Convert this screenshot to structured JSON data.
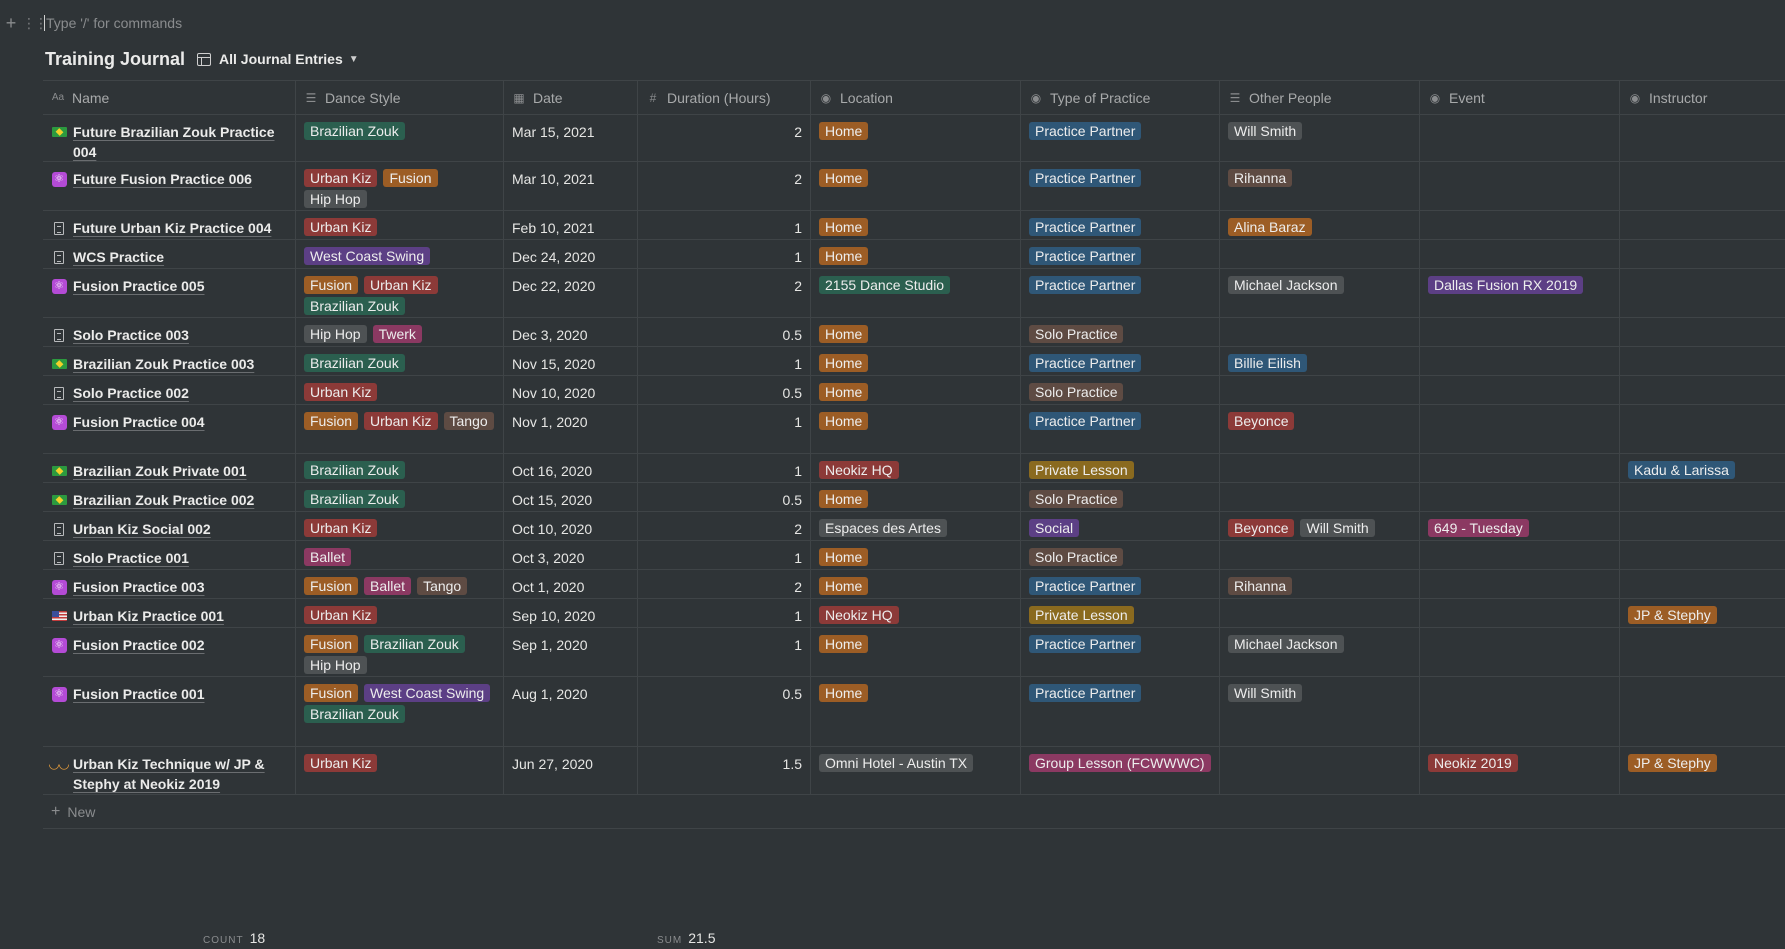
{
  "command_placeholder": "Type '/' for commands",
  "title": "Training Journal",
  "view_name": "All Journal Entries",
  "colors": {
    "background": "#2f3437",
    "text": "#e6e6e4"
  },
  "columns": [
    {
      "label": "Name",
      "icon": "text-type-icon"
    },
    {
      "label": "Dance Style",
      "icon": "list-icon"
    },
    {
      "label": "Date",
      "icon": "calendar-icon"
    },
    {
      "label": "Duration (Hours)",
      "icon": "number-icon"
    },
    {
      "label": "Location",
      "icon": "select-icon"
    },
    {
      "label": "Type of Practice",
      "icon": "select-icon"
    },
    {
      "label": "Other People",
      "icon": "list-icon"
    },
    {
      "label": "Event",
      "icon": "select-icon"
    },
    {
      "label": "Instructor",
      "icon": "select-icon"
    }
  ],
  "rows": [
    {
      "icon": "flag-brazil",
      "name": "Future Brazilian Zouk Practice 004",
      "styles": [
        {
          "label": "Brazilian Zouk",
          "color": "green"
        }
      ],
      "date": "Mar 15, 2021",
      "duration": "2",
      "location": {
        "label": "Home",
        "color": "orange"
      },
      "practice": {
        "label": "Practice Partner",
        "color": "blue"
      },
      "others": [
        {
          "label": "Will Smith",
          "color": "gray"
        }
      ],
      "event": null,
      "instructor": null
    },
    {
      "icon": "atom",
      "name": "Future Fusion Practice 006",
      "styles": [
        {
          "label": "Urban Kiz",
          "color": "red"
        },
        {
          "label": "Fusion",
          "color": "orange"
        },
        {
          "label": "Hip Hop",
          "color": "gray"
        }
      ],
      "date": "Mar 10, 2021",
      "duration": "2",
      "location": {
        "label": "Home",
        "color": "orange"
      },
      "practice": {
        "label": "Practice Partner",
        "color": "blue"
      },
      "others": [
        {
          "label": "Rihanna",
          "color": "brown"
        }
      ],
      "event": null,
      "instructor": null
    },
    {
      "icon": "doc",
      "name": "Future Urban Kiz Practice 004",
      "styles": [
        {
          "label": "Urban Kiz",
          "color": "red"
        }
      ],
      "date": "Feb 10, 2021",
      "duration": "1",
      "location": {
        "label": "Home",
        "color": "orange"
      },
      "practice": {
        "label": "Practice Partner",
        "color": "blue"
      },
      "others": [
        {
          "label": "Alina Baraz",
          "color": "orange"
        }
      ],
      "event": null,
      "instructor": null
    },
    {
      "icon": "doc",
      "name": "WCS Practice",
      "styles": [
        {
          "label": "West Coast Swing",
          "color": "purple"
        }
      ],
      "date": "Dec 24, 2020",
      "duration": "1",
      "location": {
        "label": "Home",
        "color": "orange"
      },
      "practice": {
        "label": "Practice Partner",
        "color": "blue"
      },
      "others": [],
      "event": null,
      "instructor": null
    },
    {
      "icon": "atom",
      "name": "Fusion Practice 005",
      "styles": [
        {
          "label": "Fusion",
          "color": "orange"
        },
        {
          "label": "Urban Kiz",
          "color": "red"
        },
        {
          "label": "Brazilian Zouk",
          "color": "green"
        }
      ],
      "date": "Dec 22, 2020",
      "duration": "2",
      "location": {
        "label": "2155 Dance Studio",
        "color": "green"
      },
      "practice": {
        "label": "Practice Partner",
        "color": "blue"
      },
      "others": [
        {
          "label": "Michael Jackson",
          "color": "gray"
        }
      ],
      "event": {
        "label": "Dallas Fusion RX 2019",
        "color": "purple"
      },
      "instructor": null
    },
    {
      "icon": "doc",
      "name": "Solo Practice 003",
      "styles": [
        {
          "label": "Hip Hop",
          "color": "gray"
        },
        {
          "label": "Twerk",
          "color": "pink"
        }
      ],
      "date": "Dec 3, 2020",
      "duration": "0.5",
      "location": {
        "label": "Home",
        "color": "orange"
      },
      "practice": {
        "label": "Solo Practice",
        "color": "brown"
      },
      "others": [],
      "event": null,
      "instructor": null
    },
    {
      "icon": "flag-brazil",
      "name": "Brazilian Zouk Practice 003",
      "styles": [
        {
          "label": "Brazilian Zouk",
          "color": "green"
        }
      ],
      "date": "Nov 15, 2020",
      "duration": "1",
      "location": {
        "label": "Home",
        "color": "orange"
      },
      "practice": {
        "label": "Practice Partner",
        "color": "blue"
      },
      "others": [
        {
          "label": "Billie Eilish",
          "color": "blue"
        }
      ],
      "event": null,
      "instructor": null
    },
    {
      "icon": "doc",
      "name": "Solo Practice 002",
      "styles": [
        {
          "label": "Urban Kiz",
          "color": "red"
        }
      ],
      "date": "Nov 10, 2020",
      "duration": "0.5",
      "location": {
        "label": "Home",
        "color": "orange"
      },
      "practice": {
        "label": "Solo Practice",
        "color": "brown"
      },
      "others": [],
      "event": null,
      "instructor": null
    },
    {
      "icon": "atom",
      "name": "Fusion Practice 004",
      "styles": [
        {
          "label": "Fusion",
          "color": "orange"
        },
        {
          "label": "Urban Kiz",
          "color": "red"
        },
        {
          "label": "Tango",
          "color": "brown"
        }
      ],
      "date": "Nov 1, 2020",
      "duration": "1",
      "location": {
        "label": "Home",
        "color": "orange"
      },
      "practice": {
        "label": "Practice Partner",
        "color": "blue"
      },
      "others": [
        {
          "label": "Beyonce",
          "color": "red"
        }
      ],
      "event": null,
      "instructor": null
    },
    {
      "icon": "flag-brazil",
      "name": "Brazilian Zouk Private 001",
      "styles": [
        {
          "label": "Brazilian Zouk",
          "color": "green"
        }
      ],
      "date": "Oct 16, 2020",
      "duration": "1",
      "location": {
        "label": "Neokiz HQ",
        "color": "red"
      },
      "practice": {
        "label": "Private Lesson",
        "color": "yellow"
      },
      "others": [],
      "event": null,
      "instructor": {
        "label": "Kadu & Larissa",
        "color": "blue"
      }
    },
    {
      "icon": "flag-brazil",
      "name": "Brazilian Zouk Practice 002",
      "styles": [
        {
          "label": "Brazilian Zouk",
          "color": "green"
        }
      ],
      "date": "Oct 15, 2020",
      "duration": "0.5",
      "location": {
        "label": "Home",
        "color": "orange"
      },
      "practice": {
        "label": "Solo Practice",
        "color": "brown"
      },
      "others": [],
      "event": null,
      "instructor": null
    },
    {
      "icon": "doc",
      "name": "Urban Kiz Social 002",
      "styles": [
        {
          "label": "Urban Kiz",
          "color": "red"
        }
      ],
      "date": "Oct 10, 2020",
      "duration": "2",
      "location": {
        "label": "Espaces des Artes",
        "color": "gray"
      },
      "practice": {
        "label": "Social",
        "color": "purple"
      },
      "others": [
        {
          "label": "Beyonce",
          "color": "red"
        },
        {
          "label": "Will Smith",
          "color": "gray"
        }
      ],
      "event": {
        "label": "649 - Tuesday",
        "color": "pink"
      },
      "instructor": null
    },
    {
      "icon": "doc",
      "name": "Solo Practice 001",
      "styles": [
        {
          "label": "Ballet",
          "color": "pink"
        }
      ],
      "date": "Oct 3, 2020",
      "duration": "1",
      "location": {
        "label": "Home",
        "color": "orange"
      },
      "practice": {
        "label": "Solo Practice",
        "color": "brown"
      },
      "others": [],
      "event": null,
      "instructor": null
    },
    {
      "icon": "atom",
      "name": "Fusion Practice 003",
      "styles": [
        {
          "label": "Fusion",
          "color": "orange"
        },
        {
          "label": "Ballet",
          "color": "pink"
        },
        {
          "label": "Tango",
          "color": "brown"
        }
      ],
      "date": "Oct 1, 2020",
      "duration": "2",
      "location": {
        "label": "Home",
        "color": "orange"
      },
      "practice": {
        "label": "Practice Partner",
        "color": "blue"
      },
      "others": [
        {
          "label": "Rihanna",
          "color": "brown"
        }
      ],
      "event": null,
      "instructor": null
    },
    {
      "icon": "flag-us",
      "name": "Urban Kiz Practice 001",
      "styles": [
        {
          "label": "Urban Kiz",
          "color": "red"
        }
      ],
      "date": "Sep 10, 2020",
      "duration": "1",
      "location": {
        "label": "Neokiz HQ",
        "color": "red"
      },
      "practice": {
        "label": "Private Lesson",
        "color": "yellow"
      },
      "others": [],
      "event": null,
      "instructor": {
        "label": "JP & Stephy",
        "color": "orange"
      }
    },
    {
      "icon": "atom",
      "name": "Fusion Practice 002",
      "styles": [
        {
          "label": "Fusion",
          "color": "orange"
        },
        {
          "label": "Brazilian Zouk",
          "color": "green"
        },
        {
          "label": "Hip Hop",
          "color": "gray"
        }
      ],
      "date": "Sep 1, 2020",
      "duration": "1",
      "location": {
        "label": "Home",
        "color": "orange"
      },
      "practice": {
        "label": "Practice Partner",
        "color": "blue"
      },
      "others": [
        {
          "label": "Michael Jackson",
          "color": "gray"
        }
      ],
      "event": null,
      "instructor": null
    },
    {
      "icon": "atom",
      "name": "Fusion Practice 001",
      "styles": [
        {
          "label": "Fusion",
          "color": "orange"
        },
        {
          "label": "West Coast Swing",
          "color": "purple"
        },
        {
          "label": "Brazilian Zouk",
          "color": "green"
        }
      ],
      "date": "Aug 1, 2020",
      "duration": "0.5",
      "location": {
        "label": "Home",
        "color": "orange"
      },
      "practice": {
        "label": "Practice Partner",
        "color": "blue"
      },
      "others": [
        {
          "label": "Will Smith",
          "color": "gray"
        }
      ],
      "event": null,
      "instructor": null
    },
    {
      "icon": "mask",
      "name": "Urban Kiz Technique w/ JP & Stephy at Neokiz 2019",
      "styles": [
        {
          "label": "Urban Kiz",
          "color": "red"
        }
      ],
      "date": "Jun 27, 2020",
      "duration": "1.5",
      "location": {
        "label": "Omni Hotel - Austin TX",
        "color": "gray"
      },
      "practice": {
        "label": "Group Lesson (FCWWWC)",
        "color": "pink"
      },
      "others": [],
      "event": {
        "label": "Neokiz 2019",
        "color": "red"
      },
      "instructor": {
        "label": "JP & Stephy",
        "color": "orange"
      }
    }
  ],
  "new_label": "New",
  "footer": {
    "count_label": "COUNT",
    "count_value": "18",
    "sum_label": "SUM",
    "sum_value": "21.5"
  }
}
